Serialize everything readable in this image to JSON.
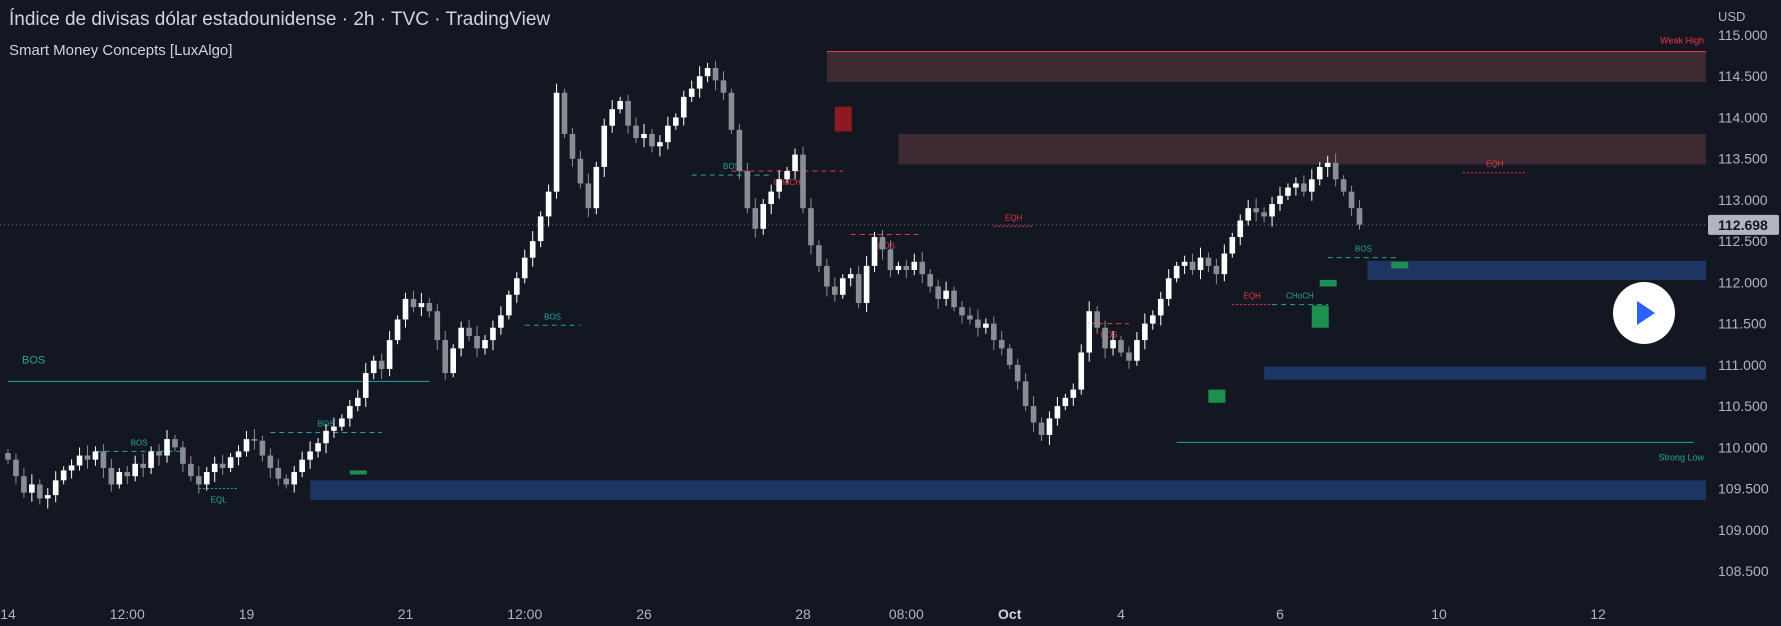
{
  "header": {
    "title": "Índice de divisas dólar estadounidense · 2h · TVC · TradingView",
    "indicator": "Smart Money Concepts [LuxAlgo]"
  },
  "colors": {
    "background": "#131722",
    "candle_up": "#ffffff",
    "candle_down": "#8a8d93",
    "bullish": "#26a69a",
    "bearish": "#f23645",
    "demand_zone": "#1c3563",
    "supply_zone": "#3d2a33",
    "fvg_bull": "#1e8f4e",
    "fvg_bear": "#8e1a21",
    "text": "#b2b5be",
    "price_tag": "#b2b5be"
  },
  "chart_data": {
    "type": "candlestick",
    "currency": "USD",
    "ylim": [
      108.25,
      115.2
    ],
    "y_ticks": [
      "115.000",
      "114.500",
      "114.000",
      "113.500",
      "113.000",
      "112.500",
      "112.000",
      "111.500",
      "111.000",
      "110.500",
      "110.000",
      "109.500",
      "109.000",
      "108.500"
    ],
    "x_ticks": [
      {
        "label": "14",
        "pos": 0
      },
      {
        "label": "12:00",
        "pos": 15
      },
      {
        "label": "19",
        "pos": 30
      },
      {
        "label": "21",
        "pos": 50
      },
      {
        "label": "12:00",
        "pos": 65
      },
      {
        "label": "26",
        "pos": 80
      },
      {
        "label": "28",
        "pos": 100
      },
      {
        "label": "08:00",
        "pos": 113
      },
      {
        "label": "Oct",
        "pos": 126
      },
      {
        "label": "4",
        "pos": 140
      },
      {
        "label": "6",
        "pos": 160
      },
      {
        "label": "10",
        "pos": 180
      },
      {
        "label": "12",
        "pos": 200
      }
    ],
    "last_price": "112.698",
    "last_price_value": 112.698,
    "closes": [
      109.85,
      109.65,
      109.45,
      109.55,
      109.38,
      109.42,
      109.6,
      109.72,
      109.78,
      109.9,
      109.85,
      109.95,
      109.75,
      109.55,
      109.7,
      109.65,
      109.8,
      109.75,
      109.95,
      109.9,
      110.1,
      110.0,
      109.8,
      109.65,
      109.55,
      109.7,
      109.8,
      109.75,
      109.88,
      109.95,
      110.1,
      110.08,
      109.9,
      109.75,
      109.62,
      109.55,
      109.7,
      109.85,
      109.95,
      110.05,
      110.2,
      110.25,
      110.35,
      110.5,
      110.6,
      110.9,
      111.05,
      110.95,
      111.3,
      111.55,
      111.8,
      111.7,
      111.75,
      111.65,
      111.3,
      110.9,
      111.2,
      111.45,
      111.35,
      111.2,
      111.3,
      111.45,
      111.6,
      111.85,
      112.05,
      112.3,
      112.5,
      112.8,
      113.1,
      114.3,
      113.8,
      113.5,
      113.2,
      112.9,
      113.4,
      113.9,
      114.1,
      114.2,
      113.9,
      113.75,
      113.8,
      113.65,
      113.7,
      113.9,
      114.0,
      114.25,
      114.35,
      114.5,
      114.6,
      114.45,
      114.3,
      113.85,
      113.35,
      112.9,
      112.65,
      112.95,
      113.1,
      113.25,
      113.35,
      113.55,
      112.9,
      112.45,
      112.2,
      111.95,
      111.85,
      112.05,
      112.1,
      111.75,
      112.2,
      112.55,
      112.4,
      112.15,
      112.2,
      112.15,
      112.25,
      112.1,
      111.95,
      111.8,
      111.9,
      111.7,
      111.6,
      111.55,
      111.45,
      111.5,
      111.3,
      111.2,
      111.0,
      110.8,
      110.5,
      110.3,
      110.15,
      110.35,
      110.5,
      110.6,
      110.7,
      111.15,
      111.65,
      111.45,
      111.2,
      111.3,
      111.15,
      111.05,
      111.3,
      111.5,
      111.6,
      111.8,
      112.05,
      112.2,
      112.25,
      112.15,
      112.3,
      112.2,
      112.1,
      112.35,
      112.55,
      112.75,
      112.9,
      112.85,
      112.8,
      112.95,
      113.05,
      113.15,
      113.2,
      113.1,
      113.25,
      113.4,
      113.45,
      113.25,
      113.1,
      112.9,
      112.7
    ],
    "supply_zones": [
      {
        "x0": 103,
        "x1": 215,
        "y0": 114.43,
        "y1": 114.8
      },
      {
        "x0": 112,
        "x1": 215,
        "y0": 113.43,
        "y1": 113.8
      }
    ],
    "demand_zones": [
      {
        "x0": 38,
        "x1": 215,
        "y0": 109.36,
        "y1": 109.6
      },
      {
        "x0": 171,
        "x1": 215,
        "y0": 112.03,
        "y1": 112.26
      },
      {
        "x0": 158,
        "x1": 215,
        "y0": 110.82,
        "y1": 110.98
      }
    ],
    "fvg": [
      {
        "x": 44,
        "y0": 109.67,
        "y1": 109.72,
        "bias": "bull"
      },
      {
        "x": 105,
        "y0": 113.83,
        "y1": 114.13,
        "bias": "bear"
      },
      {
        "x": 152,
        "y0": 110.54,
        "y1": 110.7,
        "bias": "bull"
      },
      {
        "x": 165,
        "y0": 111.45,
        "y1": 111.72,
        "bias": "bull"
      },
      {
        "x": 166,
        "y0": 111.95,
        "y1": 112.03,
        "bias": "bull"
      },
      {
        "x": 175,
        "y0": 112.17,
        "y1": 112.25,
        "bias": "bull"
      }
    ],
    "structure": [
      {
        "label": "BOS",
        "x0": 0,
        "x1": 53,
        "y": 110.8,
        "style": "solid",
        "bias": "bull",
        "big": true
      },
      {
        "label": "BOS",
        "x0": 11,
        "x1": 22,
        "y": 109.95,
        "style": "dashed",
        "bias": "bull"
      },
      {
        "label": "EQL",
        "x0": 24,
        "x1": 29,
        "y": 109.5,
        "style": "dotted",
        "bias": "bull",
        "below": true
      },
      {
        "label": "BOS",
        "x0": 33,
        "x1": 47,
        "y": 110.18,
        "style": "dashed",
        "bias": "bull"
      },
      {
        "label": "BOS",
        "x0": 65,
        "x1": 72,
        "y": 111.48,
        "style": "dashed",
        "bias": "bull"
      },
      {
        "label": "BOS",
        "x0": 86,
        "x1": 96,
        "y": 113.3,
        "style": "dashed",
        "bias": "bull"
      },
      {
        "label": "CHoCH",
        "x0": 91,
        "x1": 105,
        "y": 113.35,
        "style": "dashed",
        "bias": "bear",
        "below": true
      },
      {
        "label": "BOS",
        "x0": 106,
        "x1": 115,
        "y": 112.58,
        "style": "dashed",
        "bias": "bear",
        "below": true
      },
      {
        "label": "EQH",
        "x0": 124,
        "x1": 129,
        "y": 112.68,
        "style": "dotted",
        "bias": "bear"
      },
      {
        "label": "BOS",
        "x0": 136,
        "x1": 141,
        "y": 111.5,
        "style": "dashed",
        "bias": "bear",
        "below": true
      },
      {
        "label": "EQH",
        "x0": 154,
        "x1": 159,
        "y": 111.73,
        "style": "dotted",
        "bias": "bear"
      },
      {
        "label": "CHoCH",
        "x0": 159,
        "x1": 166,
        "y": 111.73,
        "style": "dashed",
        "bias": "bull"
      },
      {
        "label": "BOS",
        "x0": 166,
        "x1": 175,
        "y": 112.3,
        "style": "dashed",
        "bias": "bull"
      },
      {
        "label": "EQH",
        "x0": 183,
        "x1": 191,
        "y": 113.33,
        "style": "dotted",
        "bias": "bear"
      }
    ],
    "strong_weak": [
      {
        "label": "Weak High",
        "x0": 103,
        "x1": 215,
        "y": 114.8,
        "bias": "bear"
      },
      {
        "label": "Strong Low",
        "x0": 147,
        "x1": 212,
        "y": 110.06,
        "bias": "bull"
      }
    ]
  },
  "controls": {
    "play_icon": "play-icon"
  }
}
